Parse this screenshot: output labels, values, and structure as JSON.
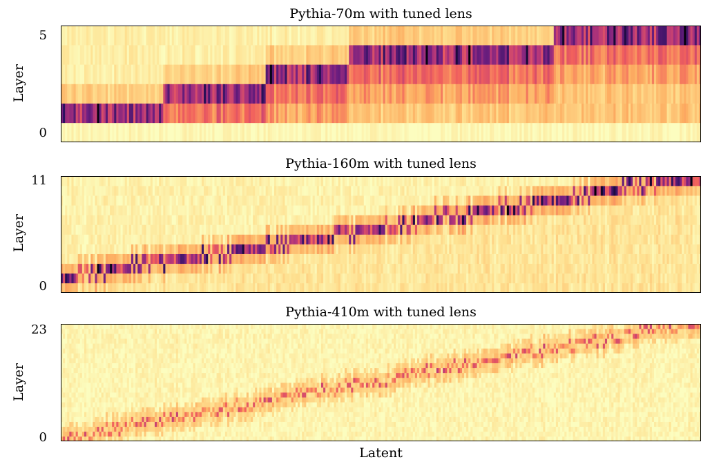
{
  "chart_data": [
    {
      "type": "heatmap",
      "title": "Pythia-70m with tuned lens",
      "ylabel": "Layer",
      "xlabel": "",
      "n_layers": 6,
      "yticks": [
        "0",
        "5"
      ],
      "ylim": [
        0,
        5
      ],
      "colormap": "magma_r",
      "layer_peak_share_of_latents": [
        0.0,
        0.16,
        0.16,
        0.13,
        0.32,
        0.23
      ],
      "layer_mean_intensity_band": [
        0.05,
        0.55,
        0.45,
        0.5,
        0.75,
        0.6
      ]
    },
    {
      "type": "heatmap",
      "title": "Pythia-160m with tuned lens",
      "ylabel": "Layer",
      "xlabel": "",
      "n_layers": 12,
      "yticks": [
        "0",
        "11"
      ],
      "ylim": [
        0,
        11
      ],
      "colormap": "magma_r",
      "layer_peak_share_of_latents": [
        0.0,
        0.06,
        0.06,
        0.05,
        0.08,
        0.09,
        0.1,
        0.1,
        0.12,
        0.18,
        0.16,
        0.1
      ]
    },
    {
      "type": "heatmap",
      "title": "Pythia-410m with tuned lens",
      "ylabel": "Layer",
      "xlabel": "Latent",
      "n_layers": 24,
      "yticks": [
        "0",
        "23"
      ],
      "ylim": [
        0,
        23
      ],
      "colormap": "magma_r"
    }
  ],
  "colors": {
    "low": "#fcfdbf",
    "mid": "#fb8761",
    "high": "#b73779",
    "peak": "#000004"
  }
}
